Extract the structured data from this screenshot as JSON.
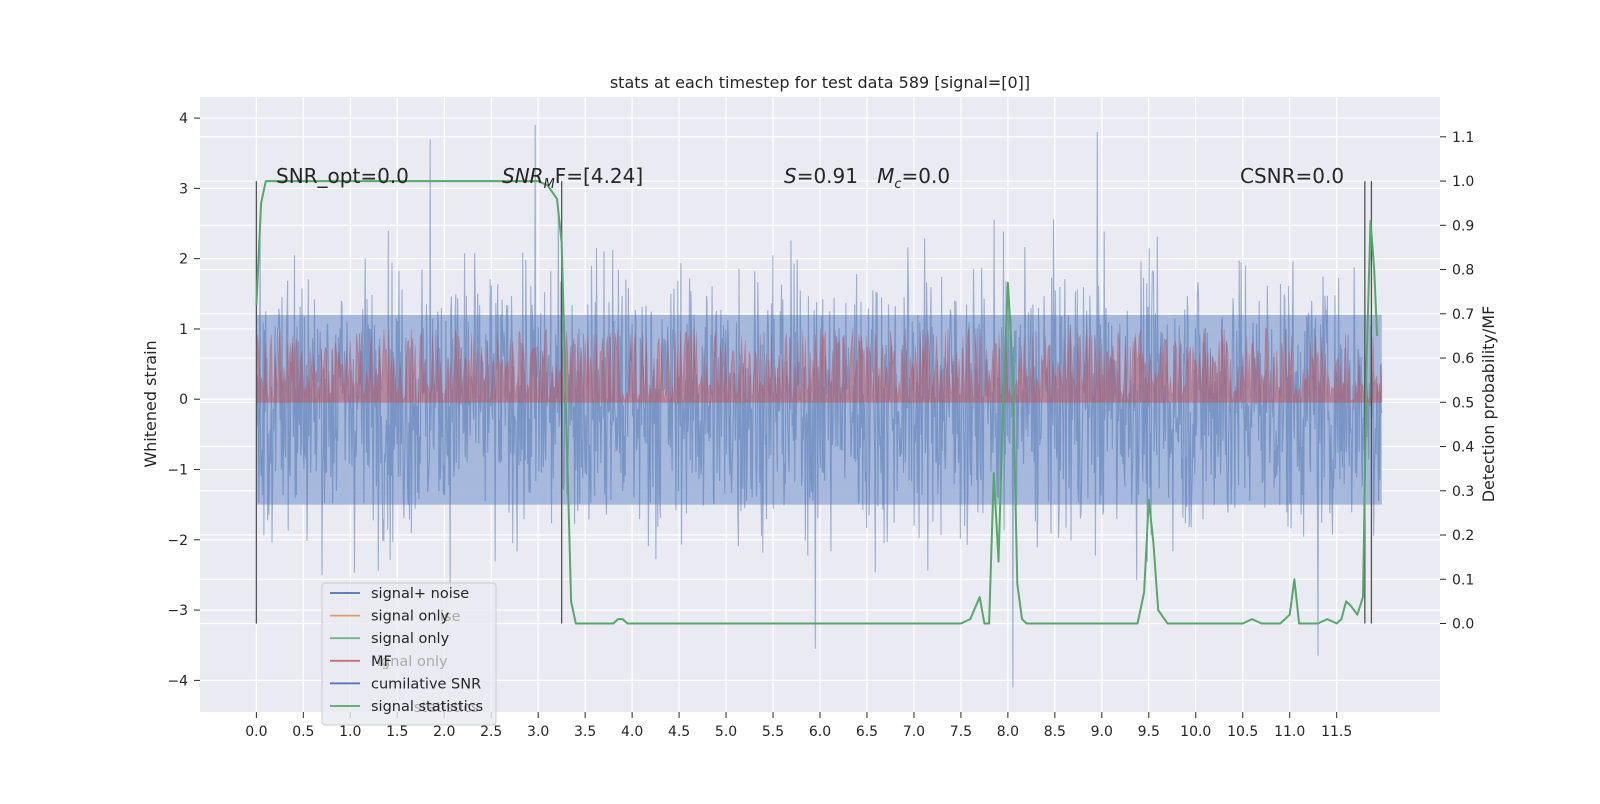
{
  "chart_data": {
    "type": "line",
    "title": "stats at each timestep for test data 589 [signal=[0]]",
    "xlabel": "",
    "ylabel_left": "Whitened strain",
    "ylabel_right": "Detection probability/MF",
    "xlim": [
      -0.6,
      12.6
    ],
    "ylim_left": [
      -4.45,
      4.3
    ],
    "ylim_right": [
      -0.2,
      1.19
    ],
    "x_ticks": [
      "0.0",
      "0.5",
      "1.0",
      "1.5",
      "2.0",
      "2.5",
      "3.0",
      "3.5",
      "4.0",
      "4.5",
      "5.0",
      "5.5",
      "6.0",
      "6.5",
      "7.0",
      "7.5",
      "8.0",
      "8.5",
      "9.0",
      "9.5",
      "10.0",
      "10.5",
      "11.0",
      "11.5"
    ],
    "y_ticks_left": [
      "4",
      "3",
      "2",
      "1",
      "0",
      "−1",
      "−2",
      "−3",
      "−4"
    ],
    "y_ticks_right": [
      "1.1",
      "1.0",
      "0.9",
      "0.8",
      "0.7",
      "0.6",
      "0.5",
      "0.4",
      "0.3",
      "0.2",
      "0.1",
      "0.0"
    ],
    "grid": true,
    "legend_position": "lower-left",
    "annotations": {
      "snr_opt": "SNR_opt=0.0",
      "snr_mf_italic": "SNR",
      "snr_mf_sub": "M",
      "snr_mf_rest": "F=[4.24]",
      "s_italic": "S",
      "s_rest": "=0.91   ",
      "mc_italic": "M",
      "mc_sub": "c",
      "mc_rest": "=0.0",
      "csnr": "CSNR=0.0"
    },
    "legend": [
      {
        "label": "signal+ noise",
        "color": "#4c72b0"
      },
      {
        "label": "signal only",
        "color": "#dd8452"
      },
      {
        "label": "signal only",
        "color": "#55a868"
      },
      {
        "label": "MF",
        "color": "#c44e52"
      },
      {
        "label": "cumilative SNR",
        "color": "#4c72b0"
      },
      {
        "label": "signal statistics",
        "color": "#55a868"
      }
    ],
    "legend_ghost_text": [
      "ise",
      "ignal only",
      "statistics"
    ],
    "noise_band": {
      "x_start": 0.0,
      "x_end": 11.98,
      "approx_min": -4.1,
      "approx_max": 3.9,
      "spikes": [
        [
          1.85,
          3.7
        ],
        [
          2.97,
          3.9
        ],
        [
          8.95,
          3.8
        ],
        [
          8.05,
          -4.1
        ],
        [
          5.95,
          -3.55
        ],
        [
          11.3,
          -3.65
        ]
      ]
    },
    "mf_band": {
      "x_start": 0.0,
      "x_end": 11.98,
      "approx_min_right": 0.5,
      "approx_max_right": 0.67
    },
    "vertical_markers": [
      0.0,
      3.25,
      11.8,
      11.87
    ],
    "series": [
      {
        "name": "signal statistics",
        "axis": "right",
        "color": "#55a868",
        "x": [
          0.0,
          0.05,
          0.1,
          0.5,
          1.0,
          1.5,
          2.0,
          2.5,
          2.9,
          3.0,
          3.1,
          3.2,
          3.25,
          3.3,
          3.35,
          3.4,
          3.45,
          3.5,
          3.6,
          3.8,
          3.85,
          3.9,
          3.95,
          4.0,
          4.5,
          5.0,
          6.0,
          7.0,
          7.5,
          7.6,
          7.7,
          7.75,
          7.8,
          7.85,
          7.9,
          7.95,
          8.0,
          8.05,
          8.1,
          8.15,
          8.2,
          8.5,
          9.0,
          9.38,
          9.45,
          9.5,
          9.55,
          9.6,
          9.7,
          9.8,
          10.0,
          10.5,
          10.6,
          10.7,
          10.9,
          11.0,
          11.05,
          11.1,
          11.2,
          11.3,
          11.4,
          11.5,
          11.55,
          11.6,
          11.65,
          11.72,
          11.78,
          11.82,
          11.86,
          11.9,
          11.93
        ],
        "y": [
          0.72,
          0.95,
          1.0,
          1.0,
          1.0,
          1.0,
          1.0,
          1.0,
          1.0,
          1.0,
          0.99,
          0.96,
          0.86,
          0.45,
          0.05,
          0.0,
          0.0,
          0.0,
          0.0,
          0.0,
          0.01,
          0.01,
          0.0,
          0.0,
          0.0,
          0.0,
          0.0,
          0.0,
          0.0,
          0.01,
          0.06,
          0.0,
          0.0,
          0.34,
          0.14,
          0.5,
          0.77,
          0.58,
          0.09,
          0.01,
          0.0,
          0.0,
          0.0,
          0.0,
          0.07,
          0.28,
          0.18,
          0.03,
          0.0,
          0.0,
          0.0,
          0.0,
          0.01,
          0.0,
          0.0,
          0.02,
          0.1,
          0.0,
          0.0,
          0.0,
          0.01,
          0.0,
          0.01,
          0.05,
          0.04,
          0.02,
          0.06,
          0.6,
          0.91,
          0.8,
          0.65
        ]
      }
    ]
  }
}
